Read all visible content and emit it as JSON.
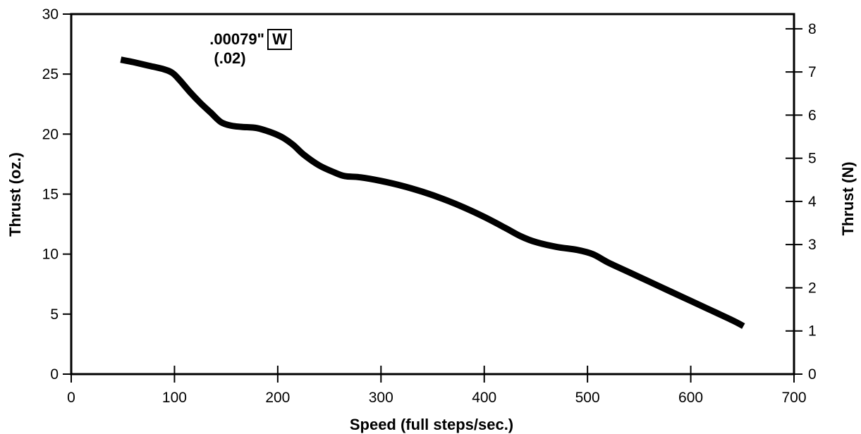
{
  "chart_data": {
    "type": "line",
    "title": "",
    "xlabel": "Speed (full steps/sec.)",
    "ylabel": "Thrust (oz.)",
    "y2label": "Thrust (N)",
    "xlim": [
      0,
      700
    ],
    "ylim": [
      0,
      30
    ],
    "y2lim": [
      0,
      8.34
    ],
    "xticks": [
      0,
      100,
      200,
      300,
      400,
      500,
      600,
      700
    ],
    "yticks": [
      0,
      5,
      10,
      15,
      20,
      25,
      30
    ],
    "y2ticks": [
      0,
      1,
      2,
      3,
      4,
      5,
      6,
      7,
      8
    ],
    "grid": false,
    "line_color": "#000000",
    "annotation": {
      "value": ".00079\"",
      "badge": "W",
      "metric": "(.02)"
    },
    "series": [
      {
        "x": [
          48,
          60,
          75,
          90,
          98,
          105,
          115,
          125,
          135,
          145,
          155,
          165,
          180,
          195,
          205,
          215,
          225,
          240,
          255,
          265,
          280,
          300,
          320,
          340,
          360,
          380,
          400,
          420,
          435,
          450,
          470,
          490,
          505,
          520,
          540,
          560,
          580,
          600,
          620,
          640,
          651
        ],
        "y": [
          26.2,
          26.0,
          25.7,
          25.4,
          25.1,
          24.5,
          23.5,
          22.6,
          21.8,
          21.0,
          20.7,
          20.6,
          20.5,
          20.1,
          19.7,
          19.1,
          18.3,
          17.4,
          16.8,
          16.5,
          16.4,
          16.1,
          15.7,
          15.2,
          14.6,
          13.9,
          13.1,
          12.2,
          11.5,
          11.0,
          10.6,
          10.35,
          10.0,
          9.3,
          8.5,
          7.7,
          6.9,
          6.1,
          5.3,
          4.5,
          4.0
        ]
      }
    ]
  }
}
